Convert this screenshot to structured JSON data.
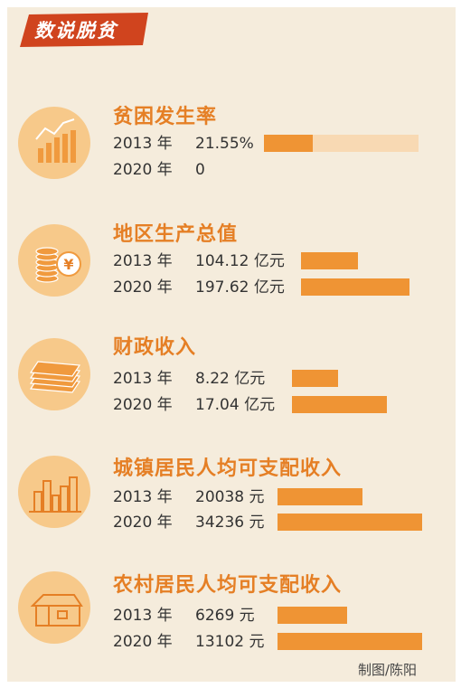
{
  "header": {
    "banner": "数说脱贫",
    "credit": "制图/陈阳"
  },
  "colors": {
    "accent": "#e57f25",
    "bar": "#ef9434",
    "bar_track": "#f8d9b3",
    "icon_circle": "#f7c98a",
    "background": "#f5ecdc",
    "banner": "#d0441e"
  },
  "chart_data": [
    {
      "type": "bar",
      "title": "贫困发生率",
      "icon": "bar-chart-trend-icon",
      "categories": [
        "2013 年",
        "2020 年"
      ],
      "values": [
        21.55,
        0
      ],
      "labels": [
        "21.55%",
        "0"
      ],
      "unit": "%",
      "xlim": [
        0,
        100
      ]
    },
    {
      "type": "bar",
      "title": "地区生产总值",
      "icon": "coins-yuan-icon",
      "categories": [
        "2013 年",
        "2020 年"
      ],
      "values": [
        104.12,
        197.62
      ],
      "labels": [
        "104.12 亿元",
        "197.62 亿元"
      ],
      "unit": "亿元"
    },
    {
      "type": "bar",
      "title": "财政收入",
      "icon": "money-stack-icon",
      "categories": [
        "2013 年",
        "2020 年"
      ],
      "values": [
        8.22,
        17.04
      ],
      "labels": [
        "8.22 亿元",
        "17.04 亿元"
      ],
      "unit": "亿元"
    },
    {
      "type": "bar",
      "title": "城镇居民人均可支配收入",
      "icon": "city-buildings-icon",
      "categories": [
        "2013 年",
        "2020 年"
      ],
      "values": [
        20038,
        34236
      ],
      "labels": [
        "20038 元",
        "34236 元"
      ],
      "unit": "元"
    },
    {
      "type": "bar",
      "title": "农村居民人均可支配收入",
      "icon": "rural-house-icon",
      "categories": [
        "2013 年",
        "2020 年"
      ],
      "values": [
        6269,
        13102
      ],
      "labels": [
        "6269 元",
        "13102 元"
      ],
      "unit": "元"
    }
  ]
}
